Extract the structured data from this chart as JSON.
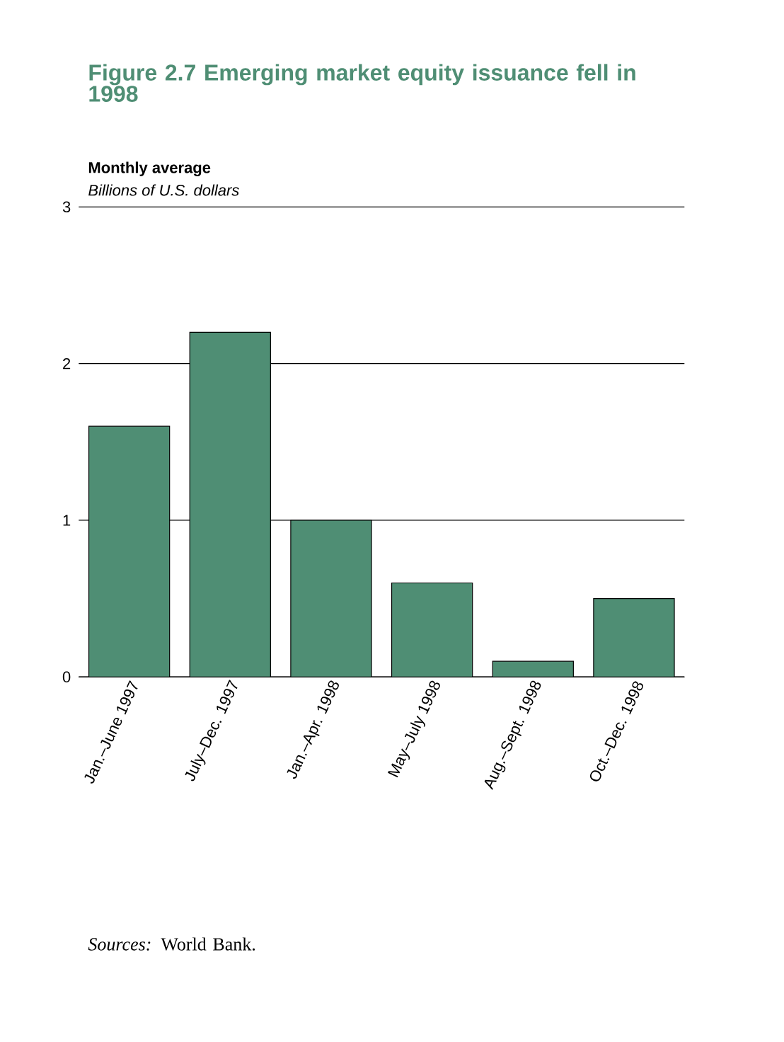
{
  "chart_data": {
    "type": "bar",
    "title": "Figure 2.7  Emerging market equity issuance fell in 1998",
    "subtitle": "Monthly average",
    "ylabel": "Billions of U.S. dollars",
    "categories": [
      "Jan.–June 1997",
      "July–Dec. 1997",
      "Jan.–Apr. 1998",
      "May–July 1998",
      "Aug.–Sept. 1998",
      "Oct.–Dec. 1998"
    ],
    "values": [
      1.6,
      2.2,
      1.0,
      0.6,
      0.1,
      0.5
    ],
    "color": "#4f8e74",
    "ylim": [
      0,
      3
    ],
    "yticks": [
      0,
      1,
      2,
      3
    ],
    "grid": "y",
    "annotations": [
      "*Sources:* World Bank."
    ]
  }
}
